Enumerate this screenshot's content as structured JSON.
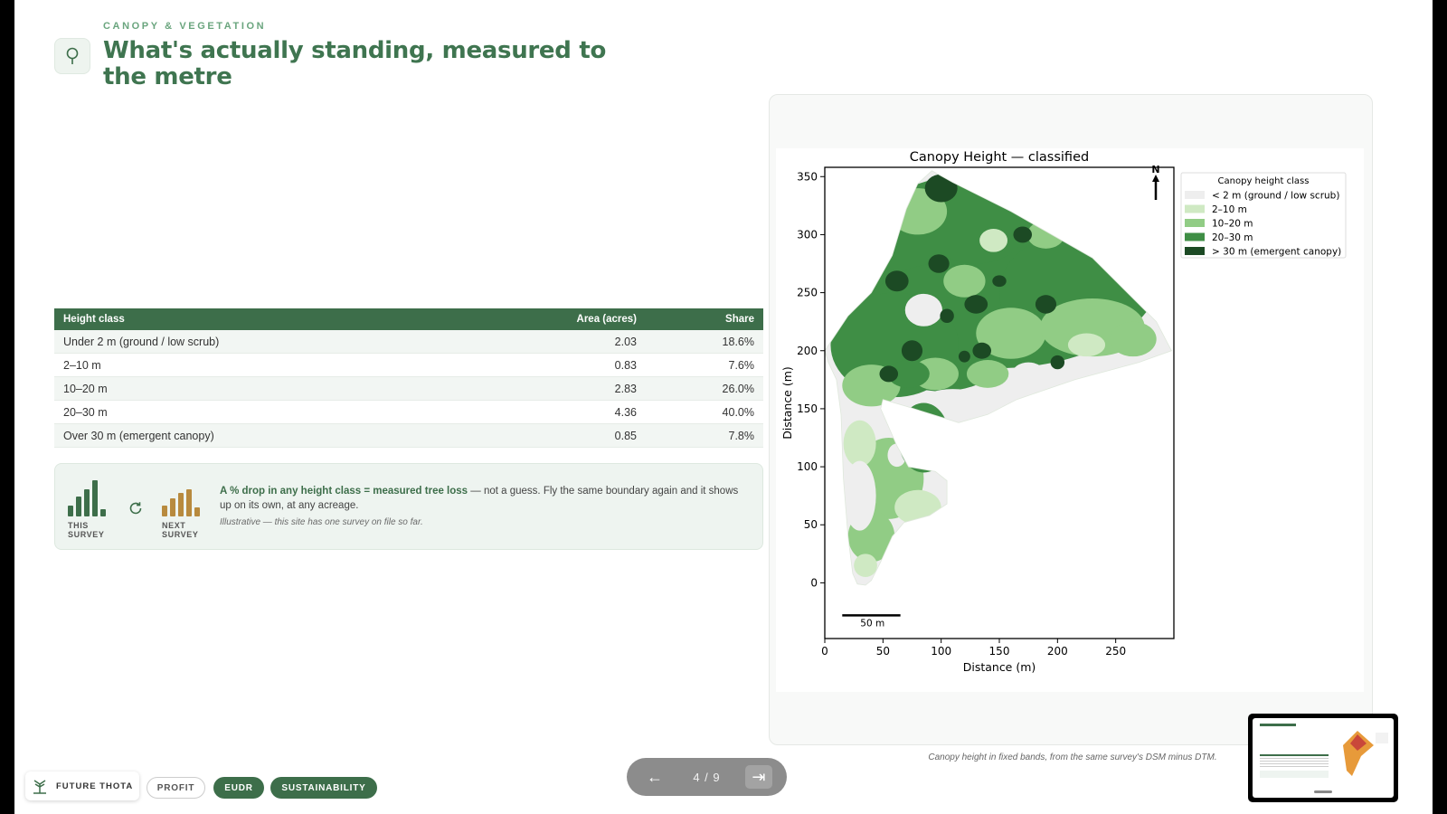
{
  "header": {
    "eyebrow": "CANOPY & VEGETATION",
    "title": "What's actually standing, measured to the metre",
    "icon": "tree-icon"
  },
  "table": {
    "columns": [
      "Height class",
      "Area (acres)",
      "Share"
    ],
    "rows": [
      [
        "Under 2 m (ground / low scrub)",
        "2.03",
        "18.6%"
      ],
      [
        "2–10 m",
        "0.83",
        "7.6%"
      ],
      [
        "10–20 m",
        "2.83",
        "26.0%"
      ],
      [
        "20–30 m",
        "4.36",
        "40.0%"
      ],
      [
        "Over 30 m (emergent canopy)",
        "0.85",
        "7.8%"
      ]
    ]
  },
  "note": {
    "this_survey_label": "THIS SURVEY",
    "next_survey_label": "NEXT SURVEY",
    "bold": "A % drop in any height class = measured tree loss",
    "text": " — not a guess. Fly the same boundary again and it shows up on its own, at any acreage.",
    "sub": "Illustrative — this site has one survey on file so far.",
    "colors": {
      "this": "#3d6e4a",
      "next": "#b88a3e"
    }
  },
  "chart_data": {
    "type": "heatmap",
    "title": "Canopy Height — classified",
    "xlabel": "Distance (m)",
    "ylabel": "Distance (m)",
    "xlim": [
      0,
      300
    ],
    "ylim": [
      -48,
      358
    ],
    "xticks": [
      0,
      50,
      100,
      150,
      200,
      250
    ],
    "yticks": [
      0,
      50,
      100,
      150,
      200,
      250,
      300,
      350
    ],
    "legend": {
      "title": "Canopy height class",
      "placement": "top-right outside",
      "entries": [
        {
          "label": "< 2 m (ground / low scrub)",
          "color": "#eeeeee"
        },
        {
          "label": "2–10 m",
          "color": "#cfe9c3"
        },
        {
          "label": "10–20 m",
          "color": "#91cc85"
        },
        {
          "label": "20–30 m",
          "color": "#3f8e45"
        },
        {
          "label": "> 30 m (emergent canopy)",
          "color": "#1c4a24"
        }
      ]
    },
    "north_label": "N",
    "scale_bar": {
      "label": "50 m",
      "length_m": 50
    }
  },
  "caption": "Canopy height in fixed bands, from the same survey's DSM minus DTM.",
  "footer": {
    "brand": "FUTURE THOTA",
    "pills": [
      "PROFIT",
      "EUDR",
      "SUSTAINABILITY"
    ],
    "pager": {
      "prev": "←",
      "count": "4 / 9",
      "next": "⇥"
    }
  }
}
